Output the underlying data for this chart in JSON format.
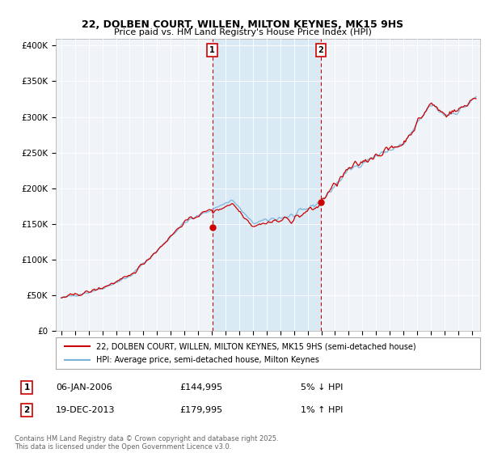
{
  "title": "22, DOLBEN COURT, WILLEN, MILTON KEYNES, MK15 9HS",
  "subtitle": "Price paid vs. HM Land Registry's House Price Index (HPI)",
  "ylabel_ticks": [
    "£0",
    "£50K",
    "£100K",
    "£150K",
    "£200K",
    "£250K",
    "£300K",
    "£350K",
    "£400K"
  ],
  "ytick_values": [
    0,
    50000,
    100000,
    150000,
    200000,
    250000,
    300000,
    350000,
    400000
  ],
  "ylim": [
    0,
    410000
  ],
  "xlim_start": 1994.6,
  "xlim_end": 2025.6,
  "xtick_years": [
    1995,
    1996,
    1997,
    1998,
    1999,
    2000,
    2001,
    2002,
    2003,
    2004,
    2005,
    2006,
    2007,
    2008,
    2009,
    2010,
    2011,
    2012,
    2013,
    2014,
    2015,
    2016,
    2017,
    2018,
    2019,
    2020,
    2021,
    2022,
    2023,
    2024,
    2025
  ],
  "hpi_color": "#7ab4dc",
  "price_color": "#cc0000",
  "sale1_date": 2006.03,
  "sale1_price": 144995,
  "sale1_label": "1",
  "sale2_date": 2013.97,
  "sale2_price": 179995,
  "sale2_label": "2",
  "vline_color": "#cc0000",
  "shade_color": "#daeaf5",
  "legend_line1": "22, DOLBEN COURT, WILLEN, MILTON KEYNES, MK15 9HS (semi-detached house)",
  "legend_line2": "HPI: Average price, semi-detached house, Milton Keynes",
  "annotation1_text": "06-JAN-2006",
  "annotation1_price": "£144,995",
  "annotation1_hpi": "5% ↓ HPI",
  "annotation2_text": "19-DEC-2013",
  "annotation2_price": "£179,995",
  "annotation2_hpi": "1% ↑ HPI",
  "footer": "Contains HM Land Registry data © Crown copyright and database right 2025.\nThis data is licensed under the Open Government Licence v3.0.",
  "background_color": "#ffffff"
}
